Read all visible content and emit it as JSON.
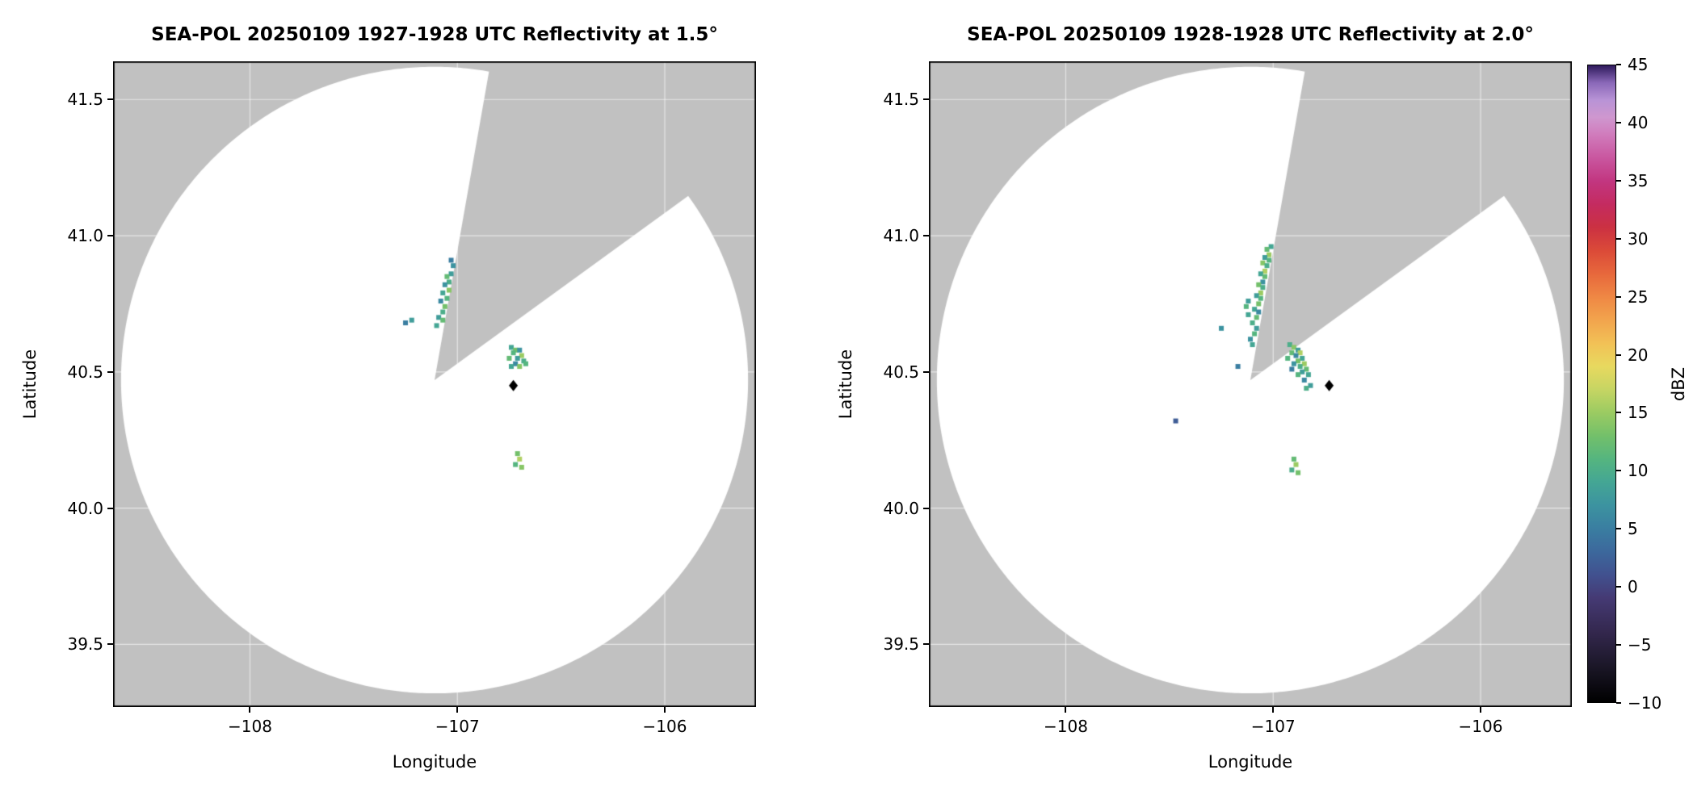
{
  "figure": {
    "background": "#ffffff",
    "outside_fill": "#c1c1c1",
    "coverage_fill": "#ffffff",
    "grid_color": "rgba(255,255,255,0.6)",
    "frame_color": "#000000",
    "marker_color": "#000000"
  },
  "colorbar": {
    "label": "dBZ",
    "min": -10,
    "max": 45,
    "ticks": [
      -10,
      -5,
      0,
      5,
      10,
      15,
      20,
      25,
      30,
      35,
      40,
      45
    ],
    "stops": [
      [
        -10,
        "#000000"
      ],
      [
        -7,
        "#1a1626"
      ],
      [
        -4,
        "#33274d"
      ],
      [
        -1,
        "#453a74"
      ],
      [
        1,
        "#41518f"
      ],
      [
        3,
        "#3c689c"
      ],
      [
        5,
        "#3a7ea1"
      ],
      [
        7,
        "#3c93a0"
      ],
      [
        9,
        "#44a694"
      ],
      [
        11,
        "#55b57f"
      ],
      [
        13,
        "#73c06a"
      ],
      [
        15,
        "#9bcb62"
      ],
      [
        17,
        "#c6d563"
      ],
      [
        19,
        "#e8d95f"
      ],
      [
        21,
        "#f2c156"
      ],
      [
        23,
        "#f2a44d"
      ],
      [
        25,
        "#ef8744"
      ],
      [
        27,
        "#e7683c"
      ],
      [
        29,
        "#db4a38"
      ],
      [
        31,
        "#cb3142"
      ],
      [
        33,
        "#c42b60"
      ],
      [
        35,
        "#c23680"
      ],
      [
        37,
        "#c9569f"
      ],
      [
        39,
        "#d07bbc"
      ],
      [
        40.5,
        "#cf97cf"
      ],
      [
        42,
        "#b893d6"
      ],
      [
        43.5,
        "#8a68b8"
      ],
      [
        45,
        "#2e1a5c"
      ]
    ]
  },
  "chart_data": [
    {
      "type": "heatmap",
      "title": "SEA-POL 20250109 1927-1928 UTC Reflectivity at 1.5°",
      "xlabel": "Longitude",
      "ylabel": "Latitude",
      "units": "dBZ",
      "xlim": [
        -108.66,
        -105.56
      ],
      "ylim": [
        39.27,
        41.64
      ],
      "xticks": [
        -108,
        -107,
        -106
      ],
      "yticks": [
        39.5,
        40.0,
        40.5,
        41.0,
        41.5
      ],
      "radar_center": [
        -107.11,
        40.47
      ],
      "coverage_radius_deg": 1.15,
      "blocked_sector_deg": [
        10,
        54
      ],
      "site_marker": [
        -106.73,
        40.45
      ],
      "points": [
        [
          -107.03,
          40.91,
          5
        ],
        [
          -107.02,
          40.89,
          7
        ],
        [
          -107.03,
          40.86,
          8
        ],
        [
          -107.05,
          40.85,
          12
        ],
        [
          -107.04,
          40.83,
          10
        ],
        [
          -107.06,
          40.82,
          7
        ],
        [
          -107.04,
          40.8,
          14
        ],
        [
          -107.07,
          40.79,
          9
        ],
        [
          -107.05,
          40.77,
          11
        ],
        [
          -107.08,
          40.76,
          6
        ],
        [
          -107.06,
          40.74,
          13
        ],
        [
          -107.07,
          40.72,
          10
        ],
        [
          -107.09,
          40.7,
          8
        ],
        [
          -107.07,
          40.69,
          12
        ],
        [
          -107.1,
          40.67,
          9
        ],
        [
          -107.22,
          40.69,
          8
        ],
        [
          -107.25,
          40.68,
          5
        ],
        [
          -106.74,
          40.59,
          9
        ],
        [
          -106.72,
          40.58,
          13
        ],
        [
          -106.7,
          40.58,
          7
        ],
        [
          -106.73,
          40.57,
          11
        ],
        [
          -106.69,
          40.56,
          15
        ],
        [
          -106.71,
          40.55,
          8
        ],
        [
          -106.75,
          40.55,
          12
        ],
        [
          -106.68,
          40.54,
          10
        ],
        [
          -106.72,
          40.53,
          6
        ],
        [
          -106.7,
          40.52,
          14
        ],
        [
          -106.74,
          40.52,
          9
        ],
        [
          -106.67,
          40.53,
          11
        ],
        [
          -106.71,
          40.2,
          13
        ],
        [
          -106.7,
          40.18,
          16
        ],
        [
          -106.72,
          40.16,
          11
        ],
        [
          -106.69,
          40.15,
          14
        ]
      ]
    },
    {
      "type": "heatmap",
      "title": "SEA-POL 20250109 1928-1928 UTC Reflectivity at 2.0°",
      "xlabel": "Longitude",
      "ylabel": "Latitude",
      "units": "dBZ",
      "xlim": [
        -108.66,
        -105.56
      ],
      "ylim": [
        39.27,
        41.64
      ],
      "xticks": [
        -108,
        -107,
        -106
      ],
      "yticks": [
        39.5,
        40.0,
        40.5,
        41.0,
        41.5
      ],
      "radar_center": [
        -107.11,
        40.47
      ],
      "coverage_radius_deg": 1.15,
      "blocked_sector_deg": [
        10,
        54
      ],
      "site_marker": [
        -106.73,
        40.45
      ],
      "points": [
        [
          -107.01,
          40.96,
          9
        ],
        [
          -107.03,
          40.95,
          12
        ],
        [
          -107.02,
          40.93,
          15
        ],
        [
          -107.04,
          40.92,
          8
        ],
        [
          -107.02,
          40.91,
          11
        ],
        [
          -107.05,
          40.9,
          14
        ],
        [
          -107.03,
          40.89,
          10
        ],
        [
          -107.04,
          40.87,
          16
        ],
        [
          -107.06,
          40.86,
          9
        ],
        [
          -107.04,
          40.85,
          12
        ],
        [
          -107.05,
          40.83,
          7
        ],
        [
          -107.07,
          40.82,
          13
        ],
        [
          -107.05,
          40.81,
          10
        ],
        [
          -107.06,
          40.79,
          15
        ],
        [
          -107.08,
          40.78,
          8
        ],
        [
          -107.06,
          40.77,
          11
        ],
        [
          -107.07,
          40.75,
          13
        ],
        [
          -107.09,
          40.73,
          9
        ],
        [
          -107.07,
          40.72,
          6
        ],
        [
          -107.08,
          40.7,
          12
        ],
        [
          -107.1,
          40.68,
          10
        ],
        [
          -107.08,
          40.66,
          8
        ],
        [
          -107.09,
          40.64,
          11
        ],
        [
          -107.11,
          40.62,
          7
        ],
        [
          -107.1,
          40.6,
          9
        ],
        [
          -107.12,
          40.76,
          8
        ],
        [
          -107.13,
          40.74,
          11
        ],
        [
          -107.12,
          40.71,
          9
        ],
        [
          -107.25,
          40.66,
          7
        ],
        [
          -107.47,
          40.32,
          2
        ],
        [
          -107.17,
          40.52,
          5
        ],
        [
          -106.92,
          40.6,
          10
        ],
        [
          -106.9,
          40.59,
          14
        ],
        [
          -106.88,
          40.58,
          8
        ],
        [
          -106.91,
          40.57,
          12
        ],
        [
          -106.87,
          40.57,
          16
        ],
        [
          -106.89,
          40.56,
          6
        ],
        [
          -106.93,
          40.55,
          11
        ],
        [
          -106.86,
          40.55,
          9
        ],
        [
          -106.88,
          40.54,
          13
        ],
        [
          -106.9,
          40.53,
          7
        ],
        [
          -106.85,
          40.53,
          15
        ],
        [
          -106.87,
          40.52,
          10
        ],
        [
          -106.91,
          40.51,
          5
        ],
        [
          -106.84,
          40.51,
          12
        ],
        [
          -106.86,
          40.5,
          8
        ],
        [
          -106.88,
          40.49,
          11
        ],
        [
          -106.83,
          40.49,
          9
        ],
        [
          -106.85,
          40.47,
          6
        ],
        [
          -106.82,
          40.45,
          8
        ],
        [
          -106.84,
          40.44,
          10
        ],
        [
          -106.9,
          40.18,
          12
        ],
        [
          -106.89,
          40.16,
          15
        ],
        [
          -106.91,
          40.14,
          10
        ],
        [
          -106.88,
          40.13,
          13
        ]
      ]
    }
  ]
}
